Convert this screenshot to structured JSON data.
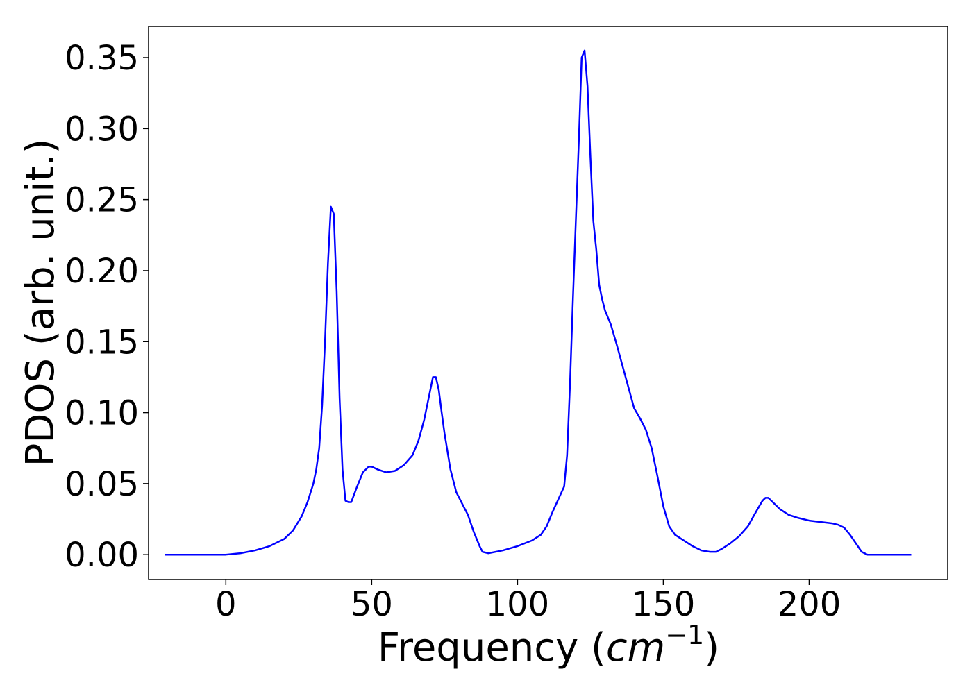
{
  "chart_data": {
    "type": "line",
    "title": "",
    "xlabel_prefix": "Frequency (",
    "xlabel_unit": "cm",
    "xlabel_exponent": "−1",
    "xlabel_suffix": ")",
    "ylabel": "PDOS (arb. unit.)",
    "xlim": [
      -26.5,
      247.5
    ],
    "ylim": [
      -0.0175,
      0.372
    ],
    "xticks": [
      0,
      50,
      100,
      150,
      200
    ],
    "xtick_labels": [
      "0",
      "50",
      "100",
      "150",
      "200"
    ],
    "yticks": [
      0.0,
      0.05,
      0.1,
      0.15,
      0.2,
      0.25,
      0.3,
      0.35
    ],
    "ytick_labels": [
      "0.00",
      "0.05",
      "0.10",
      "0.15",
      "0.20",
      "0.25",
      "0.30",
      "0.35"
    ],
    "grid": false,
    "legend": "none",
    "series": [
      {
        "color": "#0000ff",
        "x": [
          -21,
          0,
          5,
          10,
          15,
          20,
          23,
          26,
          28,
          30,
          31,
          32,
          33,
          34,
          35,
          36,
          37,
          38,
          39,
          40,
          41,
          42,
          43,
          45,
          47,
          49,
          50,
          52,
          55,
          58,
          61,
          64,
          66,
          68,
          70,
          71,
          72,
          73,
          74,
          75,
          77,
          79,
          81,
          83,
          85,
          87,
          88,
          90,
          95,
          100,
          105,
          108,
          110,
          112,
          114,
          116,
          117,
          118,
          119,
          120,
          121,
          122,
          123,
          124,
          125,
          126,
          127,
          128,
          129,
          130,
          132,
          134,
          136,
          138,
          140,
          142,
          144,
          146,
          148,
          150,
          152,
          154,
          157,
          160,
          163,
          166,
          168,
          170,
          173,
          176,
          179,
          182,
          184,
          185,
          186,
          188,
          190,
          193,
          196,
          200,
          204,
          208,
          210,
          212,
          214,
          216,
          218,
          220,
          225,
          235
        ],
        "y": [
          0.0,
          0.0,
          0.001,
          0.003,
          0.006,
          0.011,
          0.017,
          0.027,
          0.037,
          0.05,
          0.06,
          0.075,
          0.105,
          0.15,
          0.205,
          0.245,
          0.24,
          0.185,
          0.11,
          0.06,
          0.038,
          0.037,
          0.037,
          0.048,
          0.058,
          0.062,
          0.062,
          0.06,
          0.058,
          0.059,
          0.063,
          0.07,
          0.08,
          0.095,
          0.115,
          0.125,
          0.125,
          0.116,
          0.1,
          0.085,
          0.06,
          0.044,
          0.036,
          0.028,
          0.016,
          0.006,
          0.002,
          0.001,
          0.003,
          0.006,
          0.01,
          0.014,
          0.02,
          0.03,
          0.039,
          0.048,
          0.07,
          0.12,
          0.18,
          0.235,
          0.29,
          0.35,
          0.355,
          0.33,
          0.28,
          0.235,
          0.215,
          0.19,
          0.18,
          0.172,
          0.162,
          0.148,
          0.133,
          0.118,
          0.103,
          0.096,
          0.088,
          0.075,
          0.055,
          0.034,
          0.02,
          0.014,
          0.01,
          0.006,
          0.003,
          0.002,
          0.002,
          0.004,
          0.008,
          0.013,
          0.02,
          0.031,
          0.038,
          0.04,
          0.04,
          0.036,
          0.032,
          0.028,
          0.026,
          0.024,
          0.023,
          0.022,
          0.021,
          0.019,
          0.014,
          0.008,
          0.002,
          0.0,
          0.0,
          0.0
        ]
      }
    ]
  }
}
